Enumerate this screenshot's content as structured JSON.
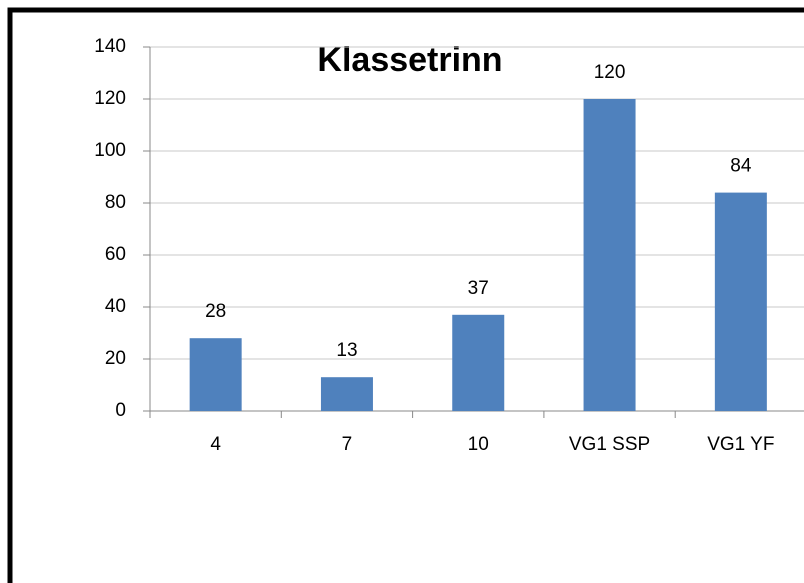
{
  "chart_data": {
    "type": "bar",
    "title": "Klassetrinn",
    "categories": [
      "4",
      "7",
      "10",
      "VG1 SSP",
      "VG1 YF"
    ],
    "values": [
      28,
      13,
      37,
      120,
      84
    ],
    "color": "#4f81bd",
    "ylim": [
      0,
      140
    ],
    "yticks": [
      0,
      20,
      40,
      60,
      80,
      100,
      120,
      140
    ],
    "grid": true
  }
}
